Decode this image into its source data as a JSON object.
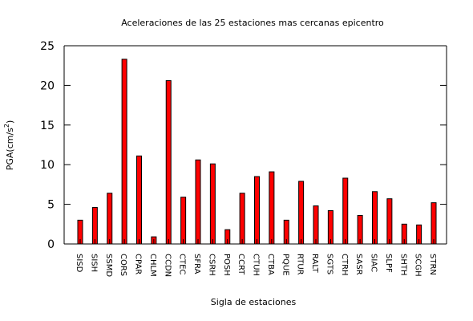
{
  "chart_data": {
    "type": "bar",
    "title": "Aceleraciones de las 25 estaciones mas cercanas epicentro",
    "xlabel": "Sigla de estaciones",
    "ylabel_main": "PGA(cm/s",
    "ylabel_sup": "2",
    "ylabel_end": ")",
    "ylim": [
      0,
      25
    ],
    "yticks": [
      0,
      5,
      10,
      15,
      20,
      25
    ],
    "grid": false,
    "bar_color": "#ff0000",
    "bar_edge_color": "#000000",
    "categories": [
      "SISD",
      "SISH",
      "SSMD",
      "CORS",
      "CPAR",
      "CHLM",
      "CCDN",
      "CTEC",
      "SFRA",
      "CSRH",
      "POSH",
      "CCRT",
      "CTUH",
      "CTBA",
      "PQUE",
      "RTUR",
      "RALT",
      "SGTS",
      "CTRH",
      "SASR",
      "SIAC",
      "SLPF",
      "SHTH",
      "SCGH",
      "STRN"
    ],
    "values": [
      3.0,
      4.6,
      6.4,
      23.3,
      11.1,
      0.9,
      20.6,
      5.9,
      10.6,
      10.1,
      1.8,
      6.4,
      8.5,
      9.1,
      3.0,
      7.9,
      4.8,
      4.2,
      8.3,
      3.6,
      6.6,
      5.7,
      2.5,
      2.4,
      5.2
    ]
  }
}
